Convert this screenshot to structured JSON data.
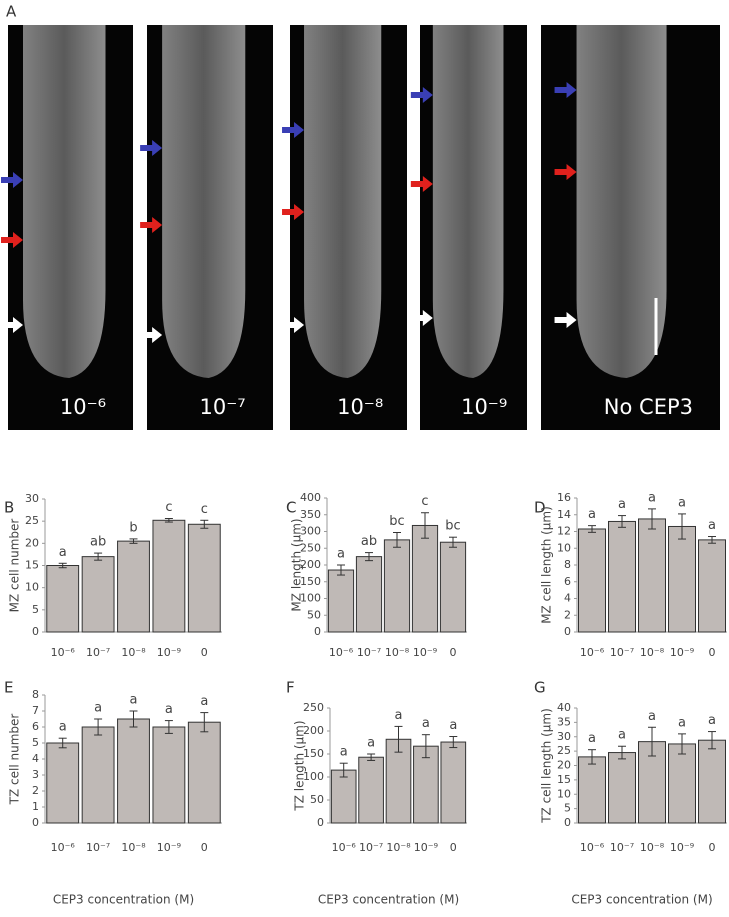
{
  "panel_a": {
    "label": "A",
    "images": [
      "10⁻⁶",
      "10⁻⁷",
      "10⁻⁸",
      "10⁻⁹",
      "No CEP3"
    ]
  },
  "chart_data": [
    {
      "type": "bar",
      "panel": "B",
      "ylabel": "MZ cell number",
      "categories": [
        "10⁻⁶",
        "10⁻⁷",
        "10⁻⁸",
        "10⁻⁹",
        "0"
      ],
      "values": [
        15,
        17,
        20.5,
        25.2,
        24.3
      ],
      "errors": [
        0.5,
        0.8,
        0.5,
        0.4,
        0.9
      ],
      "annotations": [
        "a",
        "ab",
        "b",
        "c",
        "c"
      ],
      "ylim": [
        0,
        30
      ],
      "yticks": [
        0,
        5,
        10,
        15,
        20,
        25,
        30
      ],
      "color": "#bfb9b6"
    },
    {
      "type": "bar",
      "panel": "C",
      "ylabel": "MZ length (µm)",
      "categories": [
        "10⁻⁶",
        "10⁻⁷",
        "10⁻⁸",
        "10⁻⁹",
        "0"
      ],
      "values": [
        185,
        225,
        275,
        318,
        268
      ],
      "errors": [
        15,
        12,
        22,
        38,
        15
      ],
      "annotations": [
        "a",
        "ab",
        "bc",
        "c",
        "bc"
      ],
      "ylim": [
        0,
        400
      ],
      "yticks": [
        0,
        50,
        100,
        150,
        200,
        250,
        300,
        350,
        400
      ],
      "color": "#bfb9b6"
    },
    {
      "type": "bar",
      "panel": "D",
      "ylabel": "MZ cell length (µm)",
      "categories": [
        "10⁻⁶",
        "10⁻⁷",
        "10⁻⁸",
        "10⁻⁹",
        "0"
      ],
      "values": [
        12.3,
        13.2,
        13.5,
        12.6,
        11.0
      ],
      "errors": [
        0.4,
        0.7,
        1.2,
        1.5,
        0.4
      ],
      "annotations": [
        "a",
        "a",
        "a",
        "a",
        "a"
      ],
      "ylim": [
        0,
        16
      ],
      "yticks": [
        0,
        2,
        4,
        6,
        8,
        10,
        12,
        14,
        16
      ],
      "color": "#bfb9b6"
    },
    {
      "type": "bar",
      "panel": "E",
      "ylabel": "TZ cell number",
      "xlabel": "CEP3 concentration (M)",
      "categories": [
        "10⁻⁶",
        "10⁻⁷",
        "10⁻⁸",
        "10⁻⁹",
        "0"
      ],
      "values": [
        5.0,
        6.0,
        6.5,
        6.0,
        6.3
      ],
      "errors": [
        0.3,
        0.5,
        0.5,
        0.4,
        0.6
      ],
      "annotations": [
        "a",
        "a",
        "a",
        "a",
        "a"
      ],
      "ylim": [
        0,
        8
      ],
      "yticks": [
        0,
        1,
        2,
        3,
        4,
        5,
        6,
        7,
        8
      ],
      "color": "#bfb9b6"
    },
    {
      "type": "bar",
      "panel": "F",
      "ylabel": "TZ length (µm)",
      "xlabel": "CEP3 concentration (M)",
      "categories": [
        "10⁻⁶",
        "10⁻⁷",
        "10⁻⁸",
        "10⁻⁹",
        "0"
      ],
      "values": [
        115,
        143,
        182,
        167,
        176
      ],
      "errors": [
        15,
        7,
        28,
        25,
        12
      ],
      "annotations": [
        "a",
        "a",
        "a",
        "a",
        "a"
      ],
      "ylim": [
        0,
        250
      ],
      "yticks": [
        0,
        50,
        100,
        150,
        200,
        250
      ],
      "color": "#bfb9b6"
    },
    {
      "type": "bar",
      "panel": "G",
      "ylabel": "TZ cell length (µm)",
      "xlabel": "CEP3 concentration (M)",
      "categories": [
        "10⁻⁶",
        "10⁻⁷",
        "10⁻⁸",
        "10⁻⁹",
        "0"
      ],
      "values": [
        23,
        24.5,
        28.3,
        27.5,
        28.8
      ],
      "errors": [
        2.5,
        2.2,
        5,
        3.5,
        3
      ],
      "annotations": [
        "a",
        "a",
        "a",
        "a",
        "a"
      ],
      "ylim": [
        0,
        40
      ],
      "yticks": [
        0,
        5,
        10,
        15,
        20,
        25,
        30,
        35,
        40
      ],
      "color": "#bfb9b6"
    }
  ]
}
